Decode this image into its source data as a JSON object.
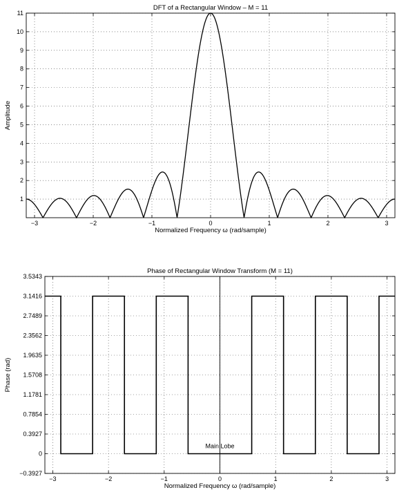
{
  "chart_data": [
    {
      "type": "line",
      "title": "DFT of a Rectangular Window – M = 11",
      "xlabel": "Normalized Frequency ω (rad/sample)",
      "ylabel": "Amplitude",
      "xlim": [
        -3.14159,
        3.14159
      ],
      "ylim": [
        0,
        11
      ],
      "grid": true,
      "M": 11,
      "x_ticks": [
        -3,
        -2,
        -1,
        0,
        1,
        2,
        3
      ],
      "x_tick_labels": [
        "−3",
        "−2",
        "−1",
        "0",
        "1",
        "2",
        "3"
      ],
      "y_ticks": [
        1,
        2,
        3,
        4,
        5,
        6,
        7,
        8,
        9,
        10,
        11
      ],
      "y_tick_labels": [
        "1",
        "2",
        "3",
        "4",
        "5",
        "6",
        "7",
        "8",
        "9",
        "10",
        "11"
      ],
      "series": [
        {
          "x": [
            -3.1416,
            -2.856,
            -2.5704,
            -2.2848,
            -1.9992,
            -1.7136,
            -1.428,
            -1.1424,
            -0.8568,
            -0.5712,
            0,
            0.5712,
            0.8568,
            1.1424,
            1.428,
            1.7136,
            1.9992,
            2.2848,
            2.5704,
            2.856,
            3.1416
          ],
          "y": [
            1.0,
            0.0,
            1.04,
            0.0,
            1.19,
            0.0,
            1.53,
            0.0,
            2.44,
            0.0,
            11.0,
            0.0,
            2.44,
            0.0,
            1.53,
            0.0,
            1.19,
            0.0,
            1.04,
            0.0,
            1.0
          ]
        }
      ]
    },
    {
      "type": "line",
      "title": "Phase of Rectangular Window Transform (M = 11)",
      "xlabel": "Normalized Frequency ω (rad/sample)",
      "ylabel": "Phase (rad)",
      "xlim": [
        -3.14159,
        3.14159
      ],
      "ylim": [
        -0.3927,
        3.5343
      ],
      "grid": true,
      "x_ticks": [
        -3,
        -2,
        -1,
        0,
        1,
        2,
        3
      ],
      "x_tick_labels": [
        "−3",
        "−2",
        "−1",
        "0",
        "1",
        "2",
        "3"
      ],
      "y_ticks": [
        -0.3927,
        0,
        0.3927,
        0.7854,
        1.1781,
        1.5708,
        1.9635,
        2.3562,
        2.7489,
        3.1416,
        3.5343
      ],
      "y_tick_labels": [
        "−0.3927",
        "0",
        "0.3927",
        "0.7854",
        "1.1781",
        "1.5708",
        "1.9635",
        "2.3562",
        "2.7489",
        "3.1416",
        "3.5343"
      ],
      "series": [
        {
          "x": [
            -3.1416,
            -2.856,
            -2.856,
            -2.2848,
            -2.2848,
            -1.7136,
            -1.7136,
            -1.1424,
            -1.1424,
            -0.5712,
            -0.5712,
            0.5712,
            0.5712,
            1.1424,
            1.1424,
            1.7136,
            1.7136,
            2.2848,
            2.2848,
            2.856,
            2.856,
            3.1416
          ],
          "y": [
            3.1416,
            3.1416,
            0,
            0,
            3.1416,
            3.1416,
            0,
            0,
            3.1416,
            3.1416,
            0,
            0,
            3.1416,
            3.1416,
            0,
            0,
            3.1416,
            3.1416,
            0,
            0,
            3.1416,
            3.1416
          ]
        }
      ],
      "annotation": {
        "text": "Main Lobe",
        "x": 0,
        "y": 0.07
      }
    }
  ]
}
